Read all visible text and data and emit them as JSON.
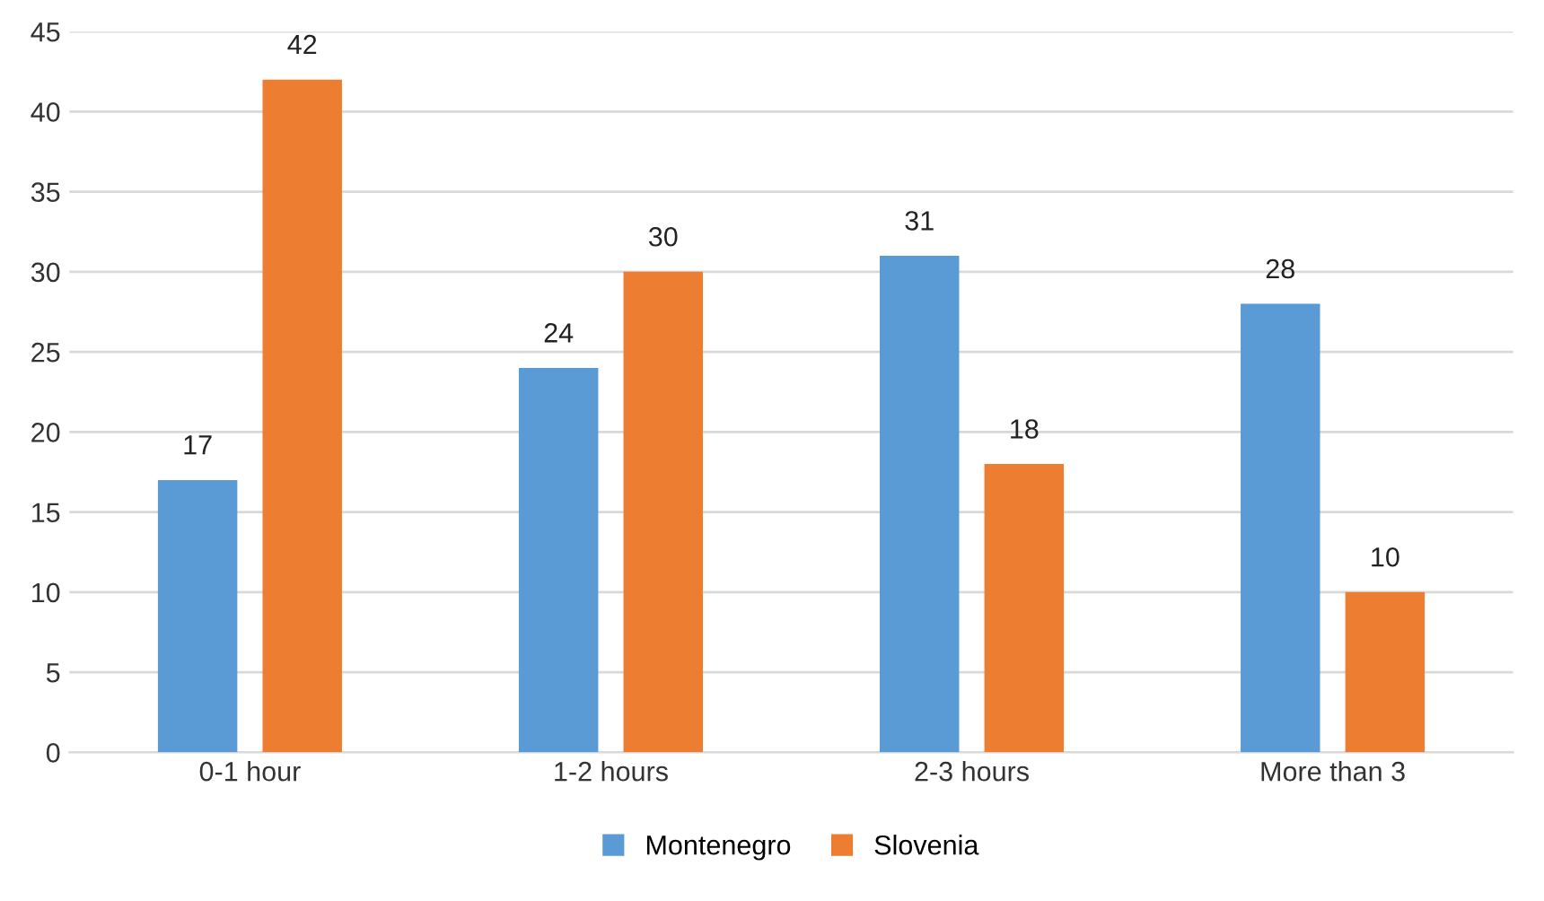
{
  "chart_data": {
    "type": "bar",
    "categories": [
      "0-1 hour",
      "1-2 hours",
      "2-3 hours",
      "More than 3"
    ],
    "series": [
      {
        "name": "Montenegro",
        "color": "#5b9bd5",
        "values": [
          17,
          24,
          31,
          28
        ]
      },
      {
        "name": "Slovenia",
        "color": "#ed7d31",
        "values": [
          42,
          30,
          18,
          10
        ]
      }
    ],
    "ylim": [
      0,
      45
    ],
    "yticks": [
      0,
      5,
      10,
      15,
      20,
      25,
      30,
      35,
      40,
      45
    ],
    "grid": "y",
    "legend": "bottom",
    "data_labels": true
  }
}
